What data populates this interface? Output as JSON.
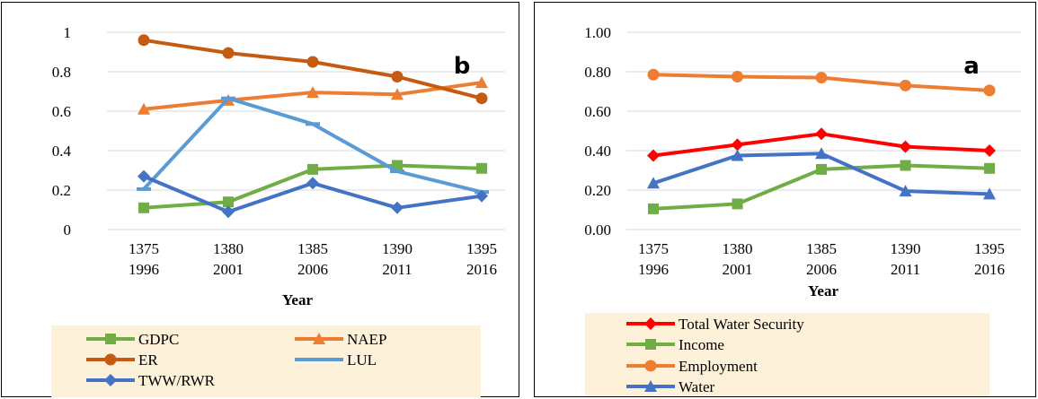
{
  "chart_data": [
    {
      "panel_letter": "b",
      "type": "line",
      "x_top": [
        "1375",
        "1380",
        "1385",
        "1390",
        "1395"
      ],
      "x_bottom": [
        "1996",
        "2001",
        "2006",
        "2011",
        "2016"
      ],
      "xlabel": "Year",
      "ylabel": "",
      "ylim": [
        0,
        1
      ],
      "yticks": [
        "0",
        "0.2",
        "0.4",
        "0.6",
        "0.8",
        "1"
      ],
      "grid": "horizontal",
      "legend_position": "bottom",
      "series": [
        {
          "name": "GDPC",
          "values": [
            0.11,
            0.14,
            0.305,
            0.325,
            0.31
          ],
          "color": "#70AD47",
          "marker": "square"
        },
        {
          "name": "NAEP",
          "values": [
            0.61,
            0.655,
            0.695,
            0.685,
            0.745
          ],
          "color": "#ED7D31",
          "marker": "triangle"
        },
        {
          "name": "ER",
          "values": [
            0.96,
            0.895,
            0.85,
            0.775,
            0.665
          ],
          "color": "#C55A11",
          "marker": "circle"
        },
        {
          "name": "LUL",
          "values": [
            0.205,
            0.665,
            0.535,
            0.295,
            0.19
          ],
          "color": "#5B9BD5",
          "marker": "dash"
        },
        {
          "name": "TWW/RWR",
          "values": [
            0.27,
            0.09,
            0.235,
            0.11,
            0.17
          ],
          "color": "#4472C4",
          "marker": "diamond"
        }
      ]
    },
    {
      "panel_letter": "a",
      "type": "line",
      "x_top": [
        "1375",
        "1380",
        "1385",
        "1390",
        "1395"
      ],
      "x_bottom": [
        "1996",
        "2001",
        "2006",
        "2011",
        "2016"
      ],
      "xlabel": "Year",
      "ylabel": "",
      "ylim": [
        0,
        1
      ],
      "yticks": [
        "0.00",
        "0.20",
        "0.40",
        "0.60",
        "0.80",
        "1.00"
      ],
      "grid": "horizontal",
      "legend_position": "bottom",
      "series": [
        {
          "name": "Total Water Security",
          "values": [
            0.375,
            0.43,
            0.485,
            0.42,
            0.4
          ],
          "color": "#FF0000",
          "marker": "diamond"
        },
        {
          "name": "Income",
          "values": [
            0.105,
            0.13,
            0.305,
            0.325,
            0.31
          ],
          "color": "#70AD47",
          "marker": "square"
        },
        {
          "name": "Employment",
          "values": [
            0.785,
            0.775,
            0.77,
            0.73,
            0.705
          ],
          "color": "#ED7D31",
          "marker": "circle"
        },
        {
          "name": "Water",
          "values": [
            0.235,
            0.375,
            0.385,
            0.195,
            0.18
          ],
          "color": "#4472C4",
          "marker": "triangle"
        }
      ]
    }
  ]
}
